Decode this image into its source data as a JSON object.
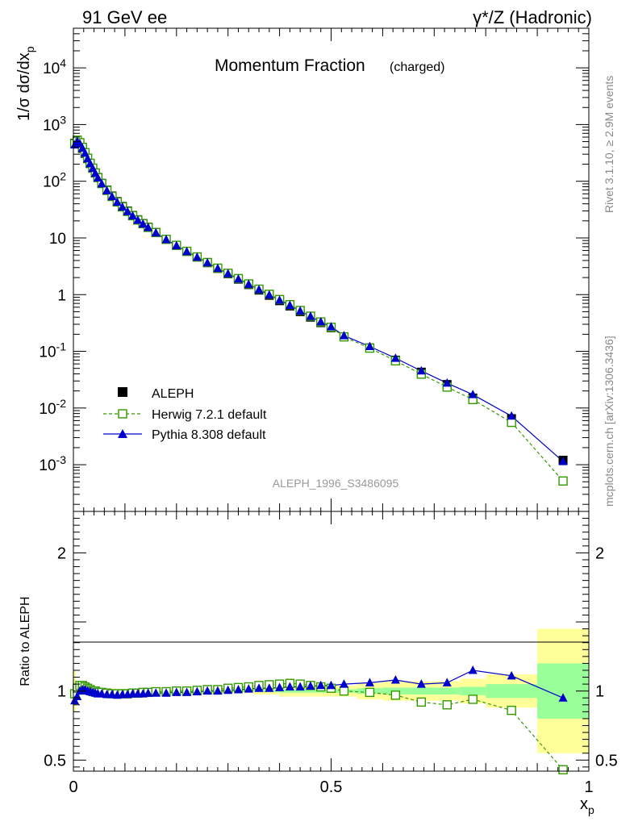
{
  "header": {
    "left": "91 GeV ee",
    "right": "γ*/Z (Hadronic)"
  },
  "side_labels": {
    "rivet": "Rivet 3.1.10, ≥ 2.9M events",
    "mcplots": "mcplots.cern.ch [arXiv:1306.3436]"
  },
  "chart_data": [
    {
      "type": "line",
      "title": "Momentum Fraction",
      "title_suffix": "(charged)",
      "ylabel": "1/σ dσ/dx",
      "ylabel_sub": "p",
      "yscale": "log",
      "ylim": [
        0.00015,
        50000
      ],
      "xlim": [
        0,
        1
      ],
      "y_tick_labels": [
        "10^-3",
        "10^-2",
        "10^-1",
        "1",
        "10",
        "10^2",
        "10^3",
        "10^4"
      ],
      "watermark": "ALEPH_1996_S3486095",
      "x": [
        0.0025,
        0.0075,
        0.0125,
        0.0175,
        0.0225,
        0.0275,
        0.0325,
        0.0375,
        0.0425,
        0.0475,
        0.055,
        0.065,
        0.075,
        0.085,
        0.095,
        0.105,
        0.115,
        0.125,
        0.135,
        0.145,
        0.16,
        0.18,
        0.2,
        0.22,
        0.24,
        0.26,
        0.28,
        0.3,
        0.32,
        0.34,
        0.36,
        0.38,
        0.4,
        0.42,
        0.44,
        0.46,
        0.48,
        0.5,
        0.525,
        0.575,
        0.625,
        0.675,
        0.725,
        0.775,
        0.85,
        0.95
      ],
      "series": [
        {
          "name": "ALEPH",
          "marker": "filled-square",
          "color": "#000000",
          "values": [
            470,
            520,
            460,
            380,
            310,
            250,
            205,
            170,
            140,
            117,
            92,
            70,
            55,
            44,
            36,
            30,
            25,
            21,
            18,
            15.5,
            12.5,
            9.5,
            7.4,
            5.8,
            4.6,
            3.65,
            2.9,
            2.33,
            1.87,
            1.5,
            1.2,
            0.97,
            0.78,
            0.63,
            0.5,
            0.4,
            0.32,
            0.26,
            0.18,
            0.115,
            0.07,
            0.043,
            0.026,
            0.015,
            0.0065,
            0.0012
          ]
        },
        {
          "name": "Herwig 7.2.1 default",
          "marker": "open-square",
          "line": "dashed",
          "color": "#339900",
          "ratio": [
            0.98,
            1.02,
            1.04,
            1.04,
            1.03,
            1.02,
            1.01,
            1.0,
            1.0,
            0.99,
            0.99,
            0.985,
            0.98,
            0.98,
            0.98,
            0.98,
            0.985,
            0.985,
            0.99,
            0.99,
            0.995,
            0.995,
            1.0,
            1.0,
            1.005,
            1.01,
            1.01,
            1.02,
            1.025,
            1.03,
            1.04,
            1.045,
            1.05,
            1.055,
            1.05,
            1.04,
            1.03,
            1.02,
            1.0,
            0.99,
            0.97,
            0.92,
            0.9,
            0.94,
            0.86,
            0.43
          ]
        },
        {
          "name": "Pythia 8.308 default",
          "marker": "filled-triangle",
          "line": "solid",
          "color": "#0000cc",
          "ratio": [
            0.93,
            0.96,
            1.0,
            1.01,
            1.01,
            1.0,
            0.995,
            0.99,
            0.985,
            0.98,
            0.98,
            0.975,
            0.975,
            0.97,
            0.975,
            0.975,
            0.98,
            0.98,
            0.98,
            0.985,
            0.985,
            0.985,
            0.99,
            0.99,
            0.995,
            1.0,
            1.0,
            1.005,
            1.01,
            1.015,
            1.02,
            1.02,
            1.025,
            1.03,
            1.03,
            1.035,
            1.04,
            1.04,
            1.05,
            1.06,
            1.08,
            1.05,
            1.06,
            1.15,
            1.11,
            0.95
          ]
        }
      ],
      "legend": [
        "ALEPH",
        "Herwig 7.2.1 default",
        "Pythia 8.308 default"
      ],
      "legend_position": "bottom-left"
    },
    {
      "type": "line",
      "ylabel": "Ratio to ALEPH",
      "xlabel": "x",
      "xlabel_sub": "p",
      "xlim": [
        0,
        1
      ],
      "ylim": [
        0.42,
        2.3
      ],
      "x_tick_labels": [
        "0",
        "0.5",
        "1"
      ],
      "y_tick_labels": [
        "0.5",
        "1",
        "2"
      ],
      "bands": [
        {
          "x0": 0.0,
          "x1": 0.005,
          "stat": 0.03,
          "total": 0.15
        },
        {
          "x0": 0.005,
          "x1": 0.01,
          "stat": 0.015,
          "total": 0.04
        },
        {
          "x0": 0.01,
          "x1": 0.35,
          "stat": 0.005,
          "total": 0.015
        },
        {
          "x0": 0.35,
          "x1": 0.4,
          "stat": 0.008,
          "total": 0.025
        },
        {
          "x0": 0.4,
          "x1": 0.55,
          "stat": 0.012,
          "total": 0.04
        },
        {
          "x0": 0.55,
          "x1": 0.6,
          "stat": 0.02,
          "total": 0.06
        },
        {
          "x0": 0.6,
          "x1": 0.75,
          "stat": 0.025,
          "total": 0.07
        },
        {
          "x0": 0.75,
          "x1": 0.8,
          "stat": 0.03,
          "total": 0.09
        },
        {
          "x0": 0.8,
          "x1": 0.9,
          "stat": 0.05,
          "total": 0.12
        },
        {
          "x0": 0.9,
          "x1": 1.0,
          "stat": 0.2,
          "total": 0.45
        }
      ]
    }
  ]
}
